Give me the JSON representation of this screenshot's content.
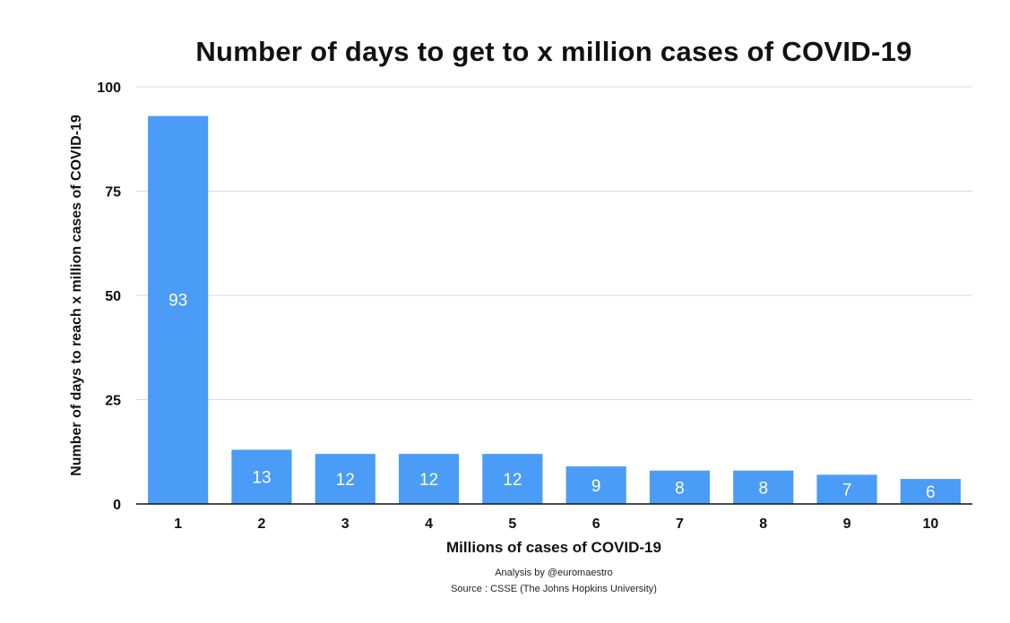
{
  "chart_data": {
    "type": "bar",
    "title": "Number of days to get to x million cases of COVID-19",
    "xlabel": "Millions of cases of COVID-19",
    "ylabel": "Number of days to reach x million cases of COVID-19",
    "categories": [
      "1",
      "2",
      "3",
      "4",
      "5",
      "6",
      "7",
      "8",
      "9",
      "10"
    ],
    "values": [
      93,
      13,
      12,
      12,
      12,
      9,
      8,
      8,
      7,
      6
    ],
    "ylim": [
      0,
      100
    ],
    "yticks": [
      0,
      25,
      50,
      75,
      100
    ],
    "grid": true,
    "data_labels": true,
    "colors": {
      "bar": "#4a9cf7",
      "label": "#ffffff",
      "grid": "#d9d9d9",
      "axis": "#111111"
    }
  },
  "footnotes": {
    "analysis": "Analysis by @euromaestro",
    "source": "Source : CSSE (The Johns Hopkins University)"
  }
}
